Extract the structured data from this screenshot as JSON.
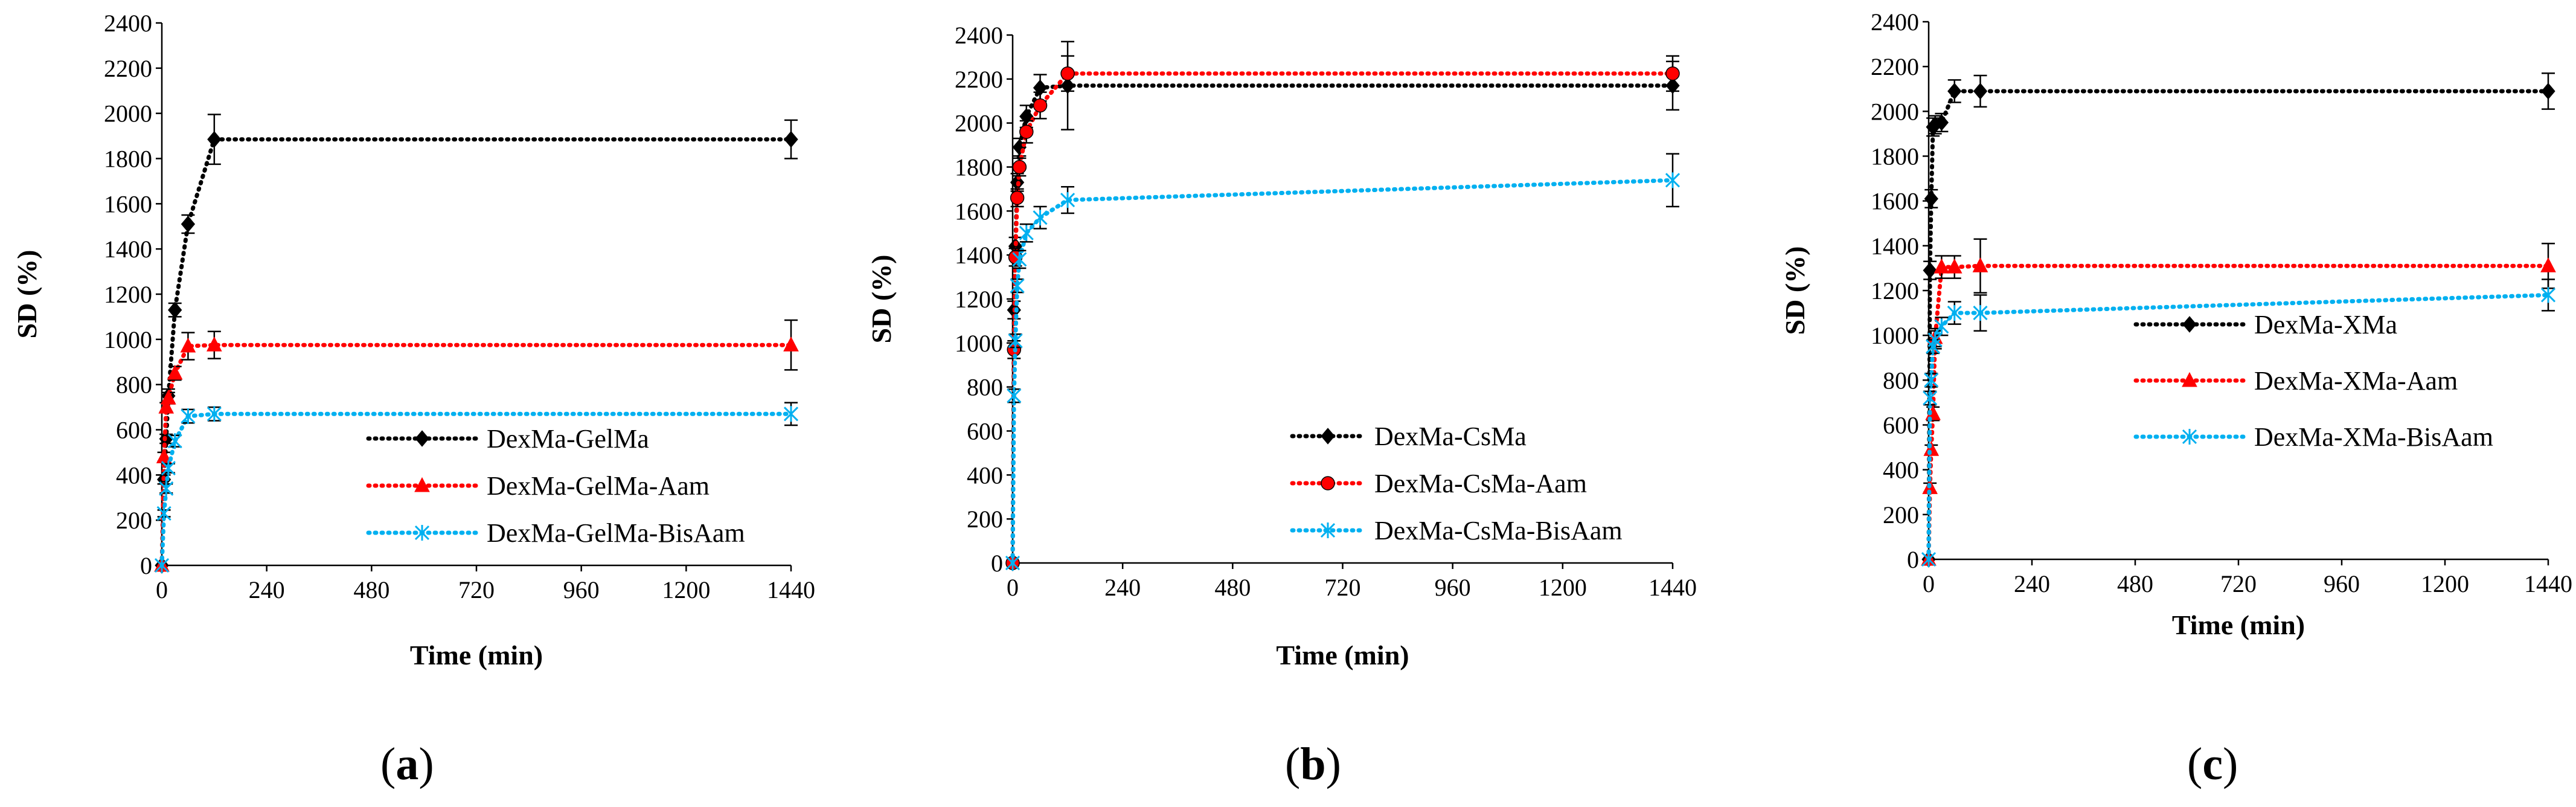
{
  "chart_data": [
    {
      "type": "line",
      "panel_label": "a",
      "title": "",
      "xlabel": "Time (min)",
      "ylabel": "SD (%)",
      "xlim": [
        0,
        1440
      ],
      "ylim": [
        0,
        2400
      ],
      "xticks": [
        0,
        240,
        480,
        720,
        960,
        1200,
        1440
      ],
      "yticks": [
        0,
        200,
        400,
        600,
        800,
        1000,
        1200,
        1400,
        1600,
        1800,
        2000,
        2200,
        2400
      ],
      "legend_position": "lower-right",
      "series": [
        {
          "name": "DexMa-GelMa",
          "color": "#000000",
          "marker": "diamond",
          "x": [
            0,
            5,
            10,
            15,
            30,
            60,
            120,
            1440
          ],
          "y": [
            0,
            380,
            560,
            750,
            1130,
            1510,
            1885,
            1885
          ],
          "err": [
            0,
            20,
            20,
            30,
            30,
            40,
            110,
            85
          ]
        },
        {
          "name": "DexMa-GelMa-Aam",
          "color": "#ff0000",
          "marker": "triangle",
          "x": [
            0,
            5,
            10,
            15,
            30,
            60,
            120,
            1440
          ],
          "y": [
            0,
            480,
            700,
            740,
            850,
            970,
            975,
            975
          ],
          "err": [
            0,
            20,
            20,
            25,
            30,
            60,
            60,
            110
          ]
        },
        {
          "name": "DexMa-GelMa-BisAam",
          "color": "#00b0f0",
          "marker": "x",
          "x": [
            0,
            5,
            10,
            15,
            30,
            60,
            120,
            1440
          ],
          "y": [
            0,
            230,
            340,
            430,
            550,
            660,
            670,
            670
          ],
          "err": [
            0,
            15,
            20,
            20,
            25,
            30,
            30,
            50
          ]
        }
      ]
    },
    {
      "type": "line",
      "panel_label": "b",
      "title": "",
      "xlabel": "Time (min)",
      "ylabel": "SD (%)",
      "xlim": [
        0,
        1440
      ],
      "ylim": [
        0,
        2400
      ],
      "xticks": [
        0,
        240,
        480,
        720,
        960,
        1200,
        1440
      ],
      "yticks": [
        0,
        200,
        400,
        600,
        800,
        1000,
        1200,
        1400,
        1600,
        1800,
        2000,
        2200,
        2400
      ],
      "legend_position": "lower-right",
      "series": [
        {
          "name": "DexMa-CsMa",
          "color": "#000000",
          "marker": "diamond",
          "x": [
            0,
            3,
            6,
            10,
            15,
            30,
            60,
            120,
            1440
          ],
          "y": [
            0,
            1150,
            1440,
            1730,
            1890,
            2030,
            2160,
            2170,
            2170
          ],
          "err": [
            0,
            40,
            40,
            40,
            40,
            50,
            60,
            200,
            110
          ]
        },
        {
          "name": "DexMa-CsMa-Aam",
          "color": "#ff0000",
          "marker": "circle",
          "x": [
            0,
            3,
            6,
            10,
            15,
            30,
            60,
            120,
            1440
          ],
          "y": [
            0,
            970,
            1390,
            1660,
            1800,
            1960,
            2080,
            2225,
            2225
          ],
          "err": [
            0,
            40,
            40,
            40,
            40,
            50,
            60,
            80,
            80
          ]
        },
        {
          "name": "DexMa-CsMa-BisAam",
          "color": "#00b0f0",
          "marker": "x",
          "x": [
            0,
            3,
            6,
            10,
            15,
            30,
            60,
            120,
            1440
          ],
          "y": [
            0,
            760,
            1010,
            1260,
            1380,
            1500,
            1570,
            1650,
            1740
          ],
          "err": [
            0,
            30,
            30,
            30,
            40,
            40,
            50,
            60,
            120
          ]
        }
      ]
    },
    {
      "type": "line",
      "panel_label": "c",
      "title": "",
      "xlabel": "Time (min)",
      "ylabel": "SD (%)",
      "xlim": [
        0,
        1440
      ],
      "ylim": [
        0,
        2400
      ],
      "xticks": [
        0,
        240,
        480,
        720,
        960,
        1200,
        1440
      ],
      "yticks": [
        0,
        200,
        400,
        600,
        800,
        1000,
        1200,
        1400,
        1600,
        1800,
        2000,
        2200,
        2400
      ],
      "legend_position": "lower-right",
      "series": [
        {
          "name": "DexMa-XMa",
          "color": "#000000",
          "marker": "diamond",
          "x": [
            0,
            3,
            6,
            10,
            15,
            30,
            60,
            120,
            1440
          ],
          "y": [
            0,
            1290,
            1610,
            1930,
            1940,
            1950,
            2090,
            2090,
            2090
          ],
          "err": [
            0,
            40,
            40,
            40,
            40,
            40,
            50,
            70,
            80
          ]
        },
        {
          "name": "DexMa-XMa-Aam",
          "color": "#ff0000",
          "marker": "triangle",
          "x": [
            0,
            3,
            6,
            10,
            15,
            30,
            60,
            120,
            1440
          ],
          "y": [
            0,
            320,
            490,
            650,
            990,
            1305,
            1305,
            1310,
            1310
          ],
          "err": [
            0,
            20,
            20,
            30,
            40,
            50,
            50,
            120,
            100
          ]
        },
        {
          "name": "DexMa-XMa-BisAam",
          "color": "#00b0f0",
          "marker": "x",
          "x": [
            0,
            3,
            6,
            10,
            15,
            30,
            60,
            120,
            1440
          ],
          "y": [
            0,
            720,
            800,
            950,
            980,
            1040,
            1100,
            1100,
            1180
          ],
          "err": [
            0,
            30,
            30,
            30,
            40,
            40,
            50,
            80,
            70
          ]
        }
      ]
    }
  ]
}
